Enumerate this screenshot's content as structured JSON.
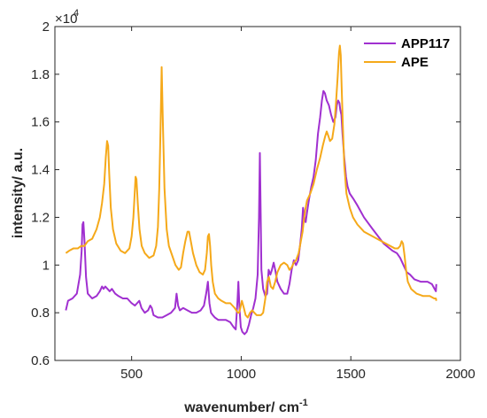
{
  "chart_data": {
    "type": "line",
    "xlabel": "wavenumber/ cm",
    "xlabel_sup": "-1",
    "ylabel": "intensity/ a.u.",
    "y_exponent_base": "×10",
    "y_exponent_power": "4",
    "y_multiplier": 10000,
    "xlim": [
      150,
      2000
    ],
    "ylim": [
      0.6,
      2.0
    ],
    "xticks": [
      500,
      1000,
      1500,
      2000
    ],
    "yticks": [
      0.6,
      0.8,
      1.0,
      1.2,
      1.4,
      1.6,
      1.8,
      2.0
    ],
    "ytick_labels": [
      "0.6",
      "0.8",
      "1",
      "1.2",
      "1.4",
      "1.6",
      "1.8",
      "2"
    ],
    "xtick_labels": [
      "500",
      "1000",
      "1500",
      "2000"
    ],
    "grid": false,
    "legend_position": "top-right",
    "series": [
      {
        "name": "APP117",
        "color": "#A030D0",
        "x": [
          200,
          210,
          230,
          250,
          265,
          272,
          276,
          280,
          285,
          292,
          300,
          320,
          340,
          355,
          365,
          372,
          380,
          390,
          400,
          410,
          425,
          440,
          460,
          480,
          500,
          515,
          525,
          535,
          545,
          560,
          575,
          585,
          592,
          600,
          620,
          640,
          660,
          680,
          698,
          705,
          712,
          720,
          735,
          755,
          775,
          795,
          815,
          830,
          840,
          848,
          855,
          862,
          870,
          880,
          895,
          910,
          930,
          950,
          965,
          975,
          983,
          987,
          992,
          998,
          1005,
          1015,
          1025,
          1035,
          1045,
          1055,
          1065,
          1075,
          1081,
          1085,
          1088,
          1092,
          1100,
          1110,
          1118,
          1125,
          1133,
          1140,
          1148,
          1155,
          1165,
          1180,
          1195,
          1210,
          1220,
          1230,
          1240,
          1250,
          1260,
          1268,
          1276,
          1282,
          1288,
          1294,
          1300,
          1310,
          1320,
          1330,
          1340,
          1350,
          1360,
          1368,
          1375,
          1382,
          1390,
          1400,
          1410,
          1420,
          1430,
          1436,
          1442,
          1448,
          1452,
          1457,
          1462,
          1470,
          1478,
          1485,
          1495,
          1510,
          1530,
          1560,
          1600,
          1650,
          1690,
          1710,
          1725,
          1735,
          1745,
          1755,
          1770,
          1790,
          1820,
          1850,
          1870,
          1882,
          1888,
          1890
        ],
        "y": [
          0.81,
          0.85,
          0.86,
          0.88,
          0.96,
          1.06,
          1.17,
          1.18,
          1.1,
          0.95,
          0.88,
          0.86,
          0.87,
          0.89,
          0.91,
          0.9,
          0.91,
          0.9,
          0.89,
          0.9,
          0.88,
          0.87,
          0.86,
          0.86,
          0.84,
          0.83,
          0.84,
          0.85,
          0.82,
          0.8,
          0.81,
          0.83,
          0.82,
          0.79,
          0.78,
          0.78,
          0.79,
          0.8,
          0.82,
          0.88,
          0.83,
          0.81,
          0.82,
          0.81,
          0.8,
          0.8,
          0.81,
          0.83,
          0.88,
          0.93,
          0.84,
          0.8,
          0.79,
          0.78,
          0.77,
          0.77,
          0.77,
          0.76,
          0.74,
          0.73,
          0.85,
          0.93,
          0.82,
          0.74,
          0.72,
          0.71,
          0.72,
          0.75,
          0.79,
          0.82,
          0.86,
          0.96,
          1.2,
          1.47,
          1.27,
          0.98,
          0.9,
          0.87,
          0.88,
          0.98,
          0.96,
          0.98,
          1.01,
          0.98,
          0.93,
          0.9,
          0.88,
          0.88,
          0.92,
          0.98,
          1.02,
          1.0,
          1.02,
          1.08,
          1.15,
          1.24,
          1.2,
          1.18,
          1.22,
          1.28,
          1.33,
          1.37,
          1.44,
          1.55,
          1.62,
          1.69,
          1.73,
          1.72,
          1.69,
          1.67,
          1.63,
          1.6,
          1.62,
          1.67,
          1.69,
          1.68,
          1.65,
          1.63,
          1.55,
          1.45,
          1.37,
          1.33,
          1.3,
          1.28,
          1.25,
          1.2,
          1.15,
          1.09,
          1.06,
          1.05,
          1.03,
          1.01,
          0.99,
          0.97,
          0.96,
          0.94,
          0.93,
          0.93,
          0.92,
          0.9,
          0.89,
          0.92
        ]
      },
      {
        "name": "APE",
        "color": "#F5A91A",
        "x": [
          200,
          215,
          235,
          255,
          270,
          285,
          300,
          320,
          340,
          355,
          365,
          375,
          382,
          388,
          393,
          398,
          405,
          415,
          430,
          450,
          470,
          490,
          500,
          508,
          514,
          518,
          522,
          528,
          536,
          546,
          560,
          580,
          600,
          612,
          620,
          626,
          632,
          637,
          642,
          650,
          660,
          670,
          685,
          700,
          715,
          725,
          735,
          745,
          755,
          762,
          770,
          780,
          795,
          810,
          825,
          835,
          843,
          848,
          853,
          858,
          863,
          870,
          880,
          895,
          910,
          930,
          950,
          970,
          985,
          990,
          996,
          1003,
          1012,
          1020,
          1030,
          1040,
          1050,
          1060,
          1070,
          1080,
          1090,
          1100,
          1110,
          1118,
          1126,
          1135,
          1145,
          1155,
          1165,
          1180,
          1195,
          1210,
          1220,
          1230,
          1240,
          1250,
          1262,
          1272,
          1280,
          1286,
          1292,
          1300,
          1315,
          1330,
          1345,
          1360,
          1372,
          1383,
          1390,
          1398,
          1405,
          1415,
          1425,
          1433,
          1440,
          1446,
          1450,
          1454,
          1458,
          1463,
          1470,
          1480,
          1495,
          1510,
          1530,
          1560,
          1600,
          1640,
          1680,
          1700,
          1715,
          1725,
          1732,
          1738,
          1745,
          1752,
          1760,
          1775,
          1800,
          1830,
          1860,
          1880,
          1888,
          1890
        ],
        "y": [
          1.05,
          1.06,
          1.07,
          1.07,
          1.08,
          1.08,
          1.1,
          1.11,
          1.15,
          1.2,
          1.26,
          1.34,
          1.45,
          1.52,
          1.5,
          1.38,
          1.24,
          1.15,
          1.09,
          1.06,
          1.05,
          1.07,
          1.12,
          1.2,
          1.3,
          1.37,
          1.36,
          1.26,
          1.15,
          1.08,
          1.05,
          1.03,
          1.04,
          1.08,
          1.16,
          1.32,
          1.58,
          1.83,
          1.62,
          1.32,
          1.15,
          1.08,
          1.04,
          1.0,
          0.98,
          0.99,
          1.05,
          1.1,
          1.14,
          1.14,
          1.1,
          1.05,
          1.0,
          0.97,
          0.96,
          0.98,
          1.05,
          1.12,
          1.13,
          1.08,
          1.0,
          0.93,
          0.88,
          0.86,
          0.85,
          0.84,
          0.84,
          0.82,
          0.8,
          0.8,
          0.82,
          0.85,
          0.82,
          0.79,
          0.78,
          0.8,
          0.81,
          0.8,
          0.79,
          0.79,
          0.79,
          0.8,
          0.86,
          0.93,
          0.95,
          0.91,
          0.9,
          0.93,
          0.97,
          1.0,
          1.01,
          1.0,
          0.98,
          0.99,
          1.01,
          1.02,
          1.05,
          1.1,
          1.14,
          1.19,
          1.23,
          1.27,
          1.3,
          1.34,
          1.4,
          1.45,
          1.5,
          1.54,
          1.56,
          1.54,
          1.52,
          1.53,
          1.59,
          1.69,
          1.79,
          1.89,
          1.92,
          1.88,
          1.75,
          1.6,
          1.42,
          1.3,
          1.24,
          1.2,
          1.17,
          1.14,
          1.12,
          1.1,
          1.08,
          1.07,
          1.07,
          1.08,
          1.1,
          1.09,
          1.04,
          0.98,
          0.93,
          0.9,
          0.88,
          0.87,
          0.87,
          0.86,
          0.86,
          0.85
        ]
      }
    ]
  }
}
